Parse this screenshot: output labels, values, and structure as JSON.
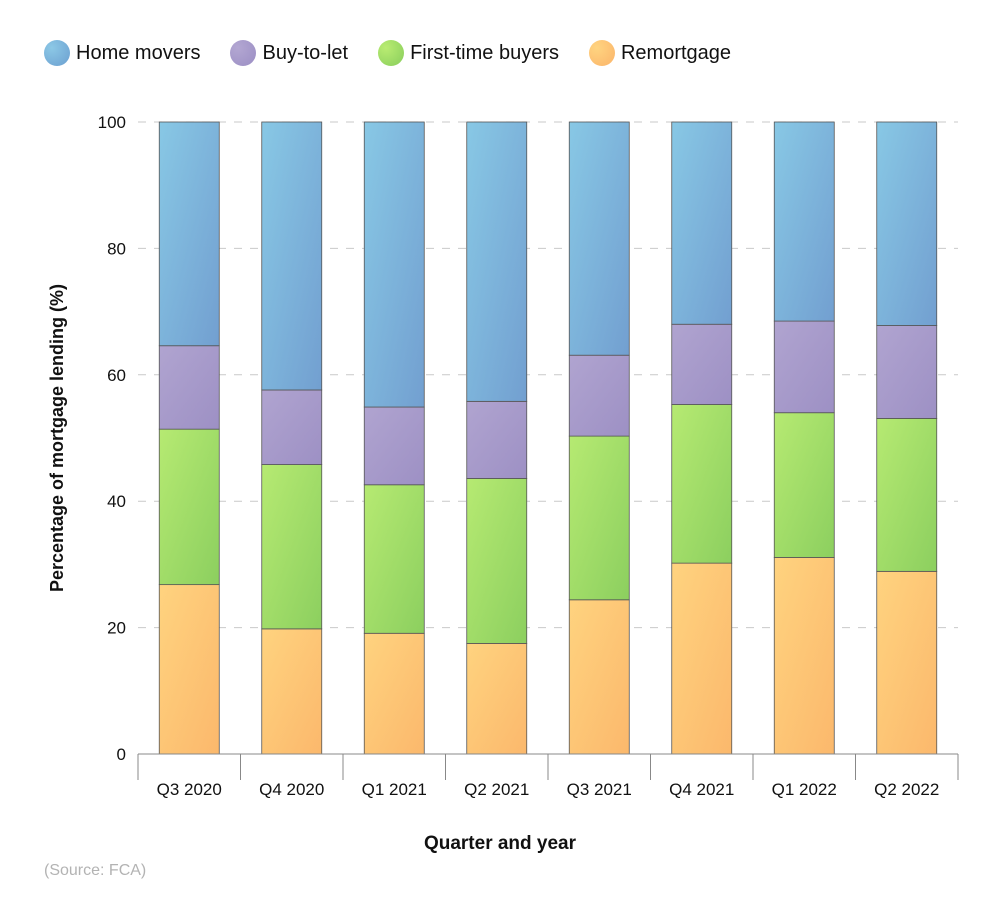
{
  "chart_data": {
    "type": "bar",
    "stacked": true,
    "xlabel": "Quarter and year",
    "ylabel": "Percentage of mortgage lending (%)",
    "ylim": [
      0,
      100
    ],
    "yticks": [
      0,
      20,
      40,
      60,
      80,
      100
    ],
    "grid": true,
    "legend_position": "top-left",
    "categories": [
      "Q3 2020",
      "Q4 2020",
      "Q1 2021",
      "Q2 2021",
      "Q3 2021",
      "Q4 2021",
      "Q1 2022",
      "Q2 2022"
    ],
    "series": [
      {
        "name": "Remortgage",
        "color": "#fec36e",
        "values": [
          26.8,
          19.8,
          19.1,
          17.5,
          24.4,
          30.2,
          31.1,
          28.9
        ]
      },
      {
        "name": "First-time buyers",
        "color": "#9fdc68",
        "values": [
          24.6,
          26.0,
          23.5,
          26.1,
          25.9,
          25.1,
          22.9,
          24.2
        ]
      },
      {
        "name": "Buy-to-let",
        "color": "#a99ccb",
        "values": [
          13.2,
          11.8,
          12.3,
          12.2,
          12.8,
          12.7,
          14.5,
          14.7
        ]
      },
      {
        "name": "Home movers",
        "color": "#7db4dc",
        "values": [
          35.4,
          42.4,
          45.1,
          44.2,
          36.9,
          32.0,
          31.5,
          32.2
        ]
      }
    ],
    "legend_order": [
      "Home movers",
      "Buy-to-let",
      "First-time buyers",
      "Remortgage"
    ]
  },
  "source": "(Source: FCA)"
}
